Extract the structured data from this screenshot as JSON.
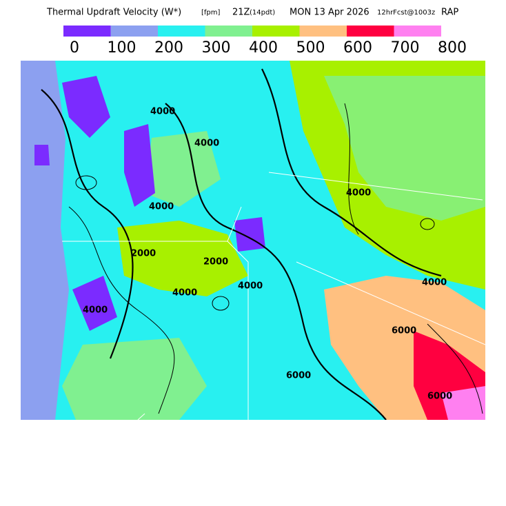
{
  "header": {
    "title": "Thermal Updraft Velocity (W*)",
    "units": "[fpm]",
    "time": "21Z",
    "local_time": "(14pdt)",
    "date": "MON 13 Apr 2026",
    "forecast": "12hrFcst@1003z",
    "model": "RAP"
  },
  "legend": {
    "colors": [
      "#7b2bff",
      "#8ca0f0",
      "#28f0f0",
      "#80f090",
      "#a8f000",
      "#ffc080",
      "#ff0040",
      "#ff80f0"
    ],
    "labels": [
      "0",
      "100",
      "200",
      "300",
      "400",
      "500",
      "600",
      "700",
      "800"
    ]
  },
  "map": {
    "contour_labels": [
      "4000",
      "4000",
      "4000",
      "4000",
      "2000",
      "2000",
      "4000",
      "4000",
      "6000",
      "4000",
      "6000",
      "6000",
      "4000"
    ]
  }
}
